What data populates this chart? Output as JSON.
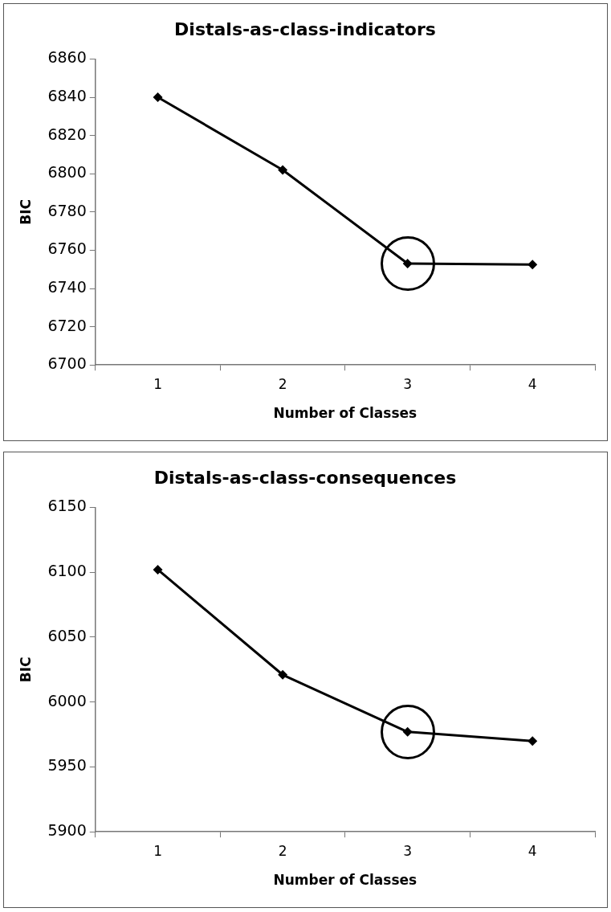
{
  "chart_data": [
    {
      "type": "line",
      "title": "Distals-as-class-indicators",
      "xlabel": "Number of Classes",
      "ylabel": "BIC",
      "categories": [
        "1",
        "2",
        "3",
        "4"
      ],
      "series": [
        {
          "color": "#000000",
          "values": [
            6840,
            6802,
            6753,
            6752.5
          ]
        }
      ],
      "ylim": [
        6700,
        6860
      ],
      "yticks": [
        6700,
        6720,
        6740,
        6760,
        6780,
        6800,
        6820,
        6840,
        6860
      ],
      "marker": "diamond",
      "grid": false,
      "legend": false
    },
    {
      "type": "line",
      "title": "Distals-as-class-consequences",
      "xlabel": "Number of Classes",
      "ylabel": "BIC",
      "categories": [
        "1",
        "2",
        "3",
        "4"
      ],
      "series": [
        {
          "color": "#000000",
          "values": [
            6102,
            6021,
            5977,
            5970
          ]
        }
      ],
      "ylim": [
        5900,
        6150
      ],
      "yticks": [
        5900,
        5950,
        6000,
        6050,
        6100,
        6150
      ],
      "marker": "diamond",
      "grid": false,
      "legend": false
    }
  ]
}
